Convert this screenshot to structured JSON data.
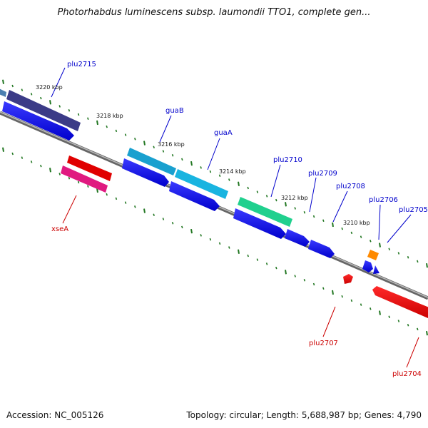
{
  "title": "Photorhabdus luminescens subsp. laumondii TTO1, complete gen...",
  "footer": {
    "accession": "Accession: NC_005126",
    "summary": "Topology: circular; Length: 5,688,987 bp; Genes: 4,790"
  },
  "positions": [
    "3220 kbp",
    "3218 kbp",
    "3216 kbp",
    "3214 kbp",
    "3212 kbp",
    "3210 kbp"
  ],
  "genes_forward": [
    {
      "name": "plu2715",
      "color": "#0000cc"
    },
    {
      "name": "guaB",
      "color": "#0000cc"
    },
    {
      "name": "guaA",
      "color": "#0000cc"
    },
    {
      "name": "plu2710",
      "color": "#0000cc"
    },
    {
      "name": "plu2709",
      "color": "#0000cc"
    },
    {
      "name": "plu2708",
      "color": "#0000cc"
    },
    {
      "name": "plu2706",
      "color": "#0000cc"
    },
    {
      "name": "plu2705",
      "color": "#0000cc"
    }
  ],
  "genes_reverse": [
    {
      "name": "xseA",
      "color": "#cc0000"
    },
    {
      "name": "plu2707",
      "color": "#cc0000"
    },
    {
      "name": "plu2704",
      "color": "#cc0000"
    }
  ],
  "colors": {
    "forward_gene": "#0000ee",
    "reverse_gene": "#ee0000",
    "backbone": "#888888",
    "tick": "#227722"
  }
}
